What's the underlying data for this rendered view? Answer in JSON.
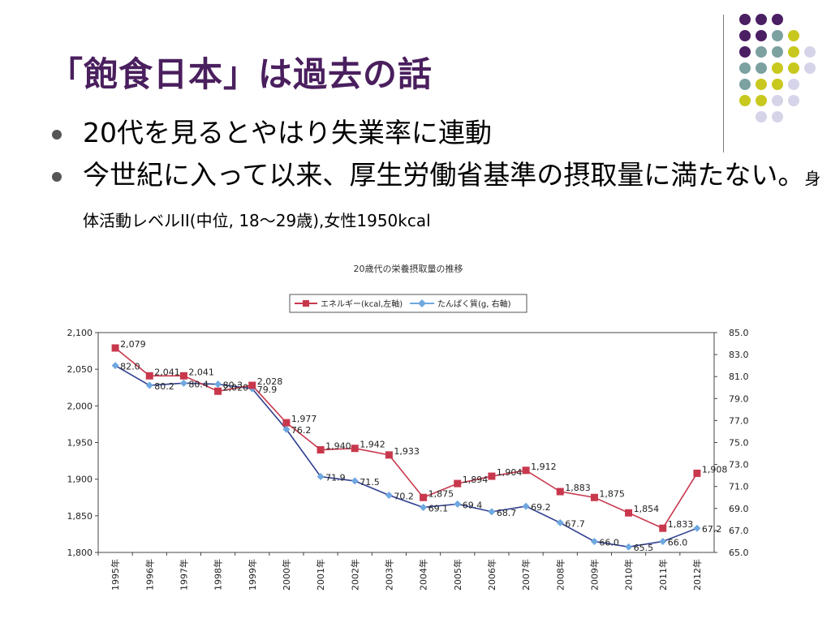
{
  "slide": {
    "title": "「飽食日本」は過去の話",
    "bullets": [
      {
        "text": "20代を見るとやはり失業率に連動"
      },
      {
        "text": "今世紀に入って以来、厚生労働省基準の摂取量に満たない。",
        "note": "身体活動レベルII(中位, 18〜29歳),女性1950kcal"
      }
    ]
  },
  "colors": {
    "title": "#4a1f5e",
    "energy_series": "#c8384d",
    "protein_series": "#6fa8e0",
    "dot_purple": "#4b1f63",
    "dot_teal": "#7ba1a0",
    "dot_yellow": "#c8c81e",
    "dot_lavender": "#d6d4e8"
  },
  "chart_data": {
    "type": "line",
    "title": "20歳代の栄養摂取量の推移",
    "categories": [
      "1995年",
      "1996年",
      "1997年",
      "1998年",
      "1999年",
      "2000年",
      "2001年",
      "2002年",
      "2003年",
      "2004年",
      "2005年",
      "2006年",
      "2007年",
      "2008年",
      "2009年",
      "2010年",
      "2011年",
      "2012年"
    ],
    "legend": [
      "エネルギー(kcal,左軸)",
      "たんぱく質(g, 右軸)"
    ],
    "legend_placement": "top",
    "series": [
      {
        "name": "エネルギー(kcal,左軸)",
        "axis": "left",
        "values": [
          2079,
          2041,
          2041,
          2020,
          2028,
          1977,
          1940,
          1942,
          1933,
          1875,
          1894,
          1904,
          1912,
          1883,
          1875,
          1854,
          1833,
          1908
        ],
        "labels": [
          "2,079",
          "2,041",
          "2,041",
          "2,020",
          "2,028",
          "1,977",
          "1,940",
          "1,942",
          "1,933",
          "1,875",
          "1,894",
          "1,904",
          "1,912",
          "1,883",
          "1,875",
          "1,854",
          "1,833",
          "1,908"
        ]
      },
      {
        "name": "たんぱく質(g, 右軸)",
        "axis": "right",
        "values": [
          82.0,
          80.2,
          80.4,
          80.3,
          79.9,
          76.2,
          71.9,
          71.5,
          70.2,
          69.1,
          69.4,
          68.7,
          69.2,
          67.7,
          66.0,
          65.5,
          66.0,
          67.2
        ],
        "labels": [
          "82.0",
          "80.2",
          "80.4",
          "80.3",
          "79.9",
          "76.2",
          "71.9",
          "71.5",
          "70.2",
          "69.1",
          "69.4",
          "68.7",
          "69.2",
          "67.7",
          "66.0",
          "65.5",
          "66.0",
          "67.2"
        ]
      }
    ],
    "y_left": {
      "ylim": [
        1800,
        2100
      ],
      "ticks": [
        1800,
        1850,
        1900,
        1950,
        2000,
        2050,
        2100
      ],
      "tick_labels": [
        "1,800",
        "1,850",
        "1,900",
        "1,950",
        "2,000",
        "2,050",
        "2,100"
      ]
    },
    "y_right": {
      "ylim": [
        65,
        85
      ],
      "ticks": [
        65,
        67,
        69,
        71,
        73,
        75,
        77,
        79,
        81,
        83,
        85
      ],
      "tick_labels": [
        "65.0",
        "67.0",
        "69.0",
        "71.0",
        "73.0",
        "75.0",
        "77.0",
        "79.0",
        "81.0",
        "83.0",
        "85.0"
      ]
    },
    "grid": false
  }
}
